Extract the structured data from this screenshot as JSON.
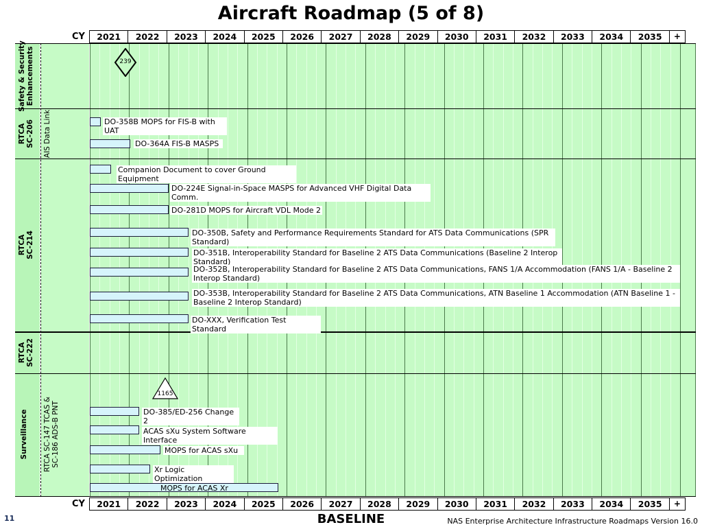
{
  "title": "Aircraft Roadmap (5 of 8)",
  "cy_label": "CY",
  "years": [
    "2021",
    "2022",
    "2023",
    "2024",
    "2025",
    "2026",
    "2027",
    "2028",
    "2029",
    "2030",
    "2031",
    "2032",
    "2033",
    "2034",
    "2035"
  ],
  "plus_label": "+",
  "sections": {
    "safety": {
      "line1": "Safety & Security",
      "line2": "Enhancements"
    },
    "sc206": {
      "line1": "RTCA",
      "line2": "SC-206",
      "sub": "AIS Data Link"
    },
    "sc214": {
      "line1": "RTCA",
      "line2": "SC-214"
    },
    "sc222": {
      "line1": "RTCA",
      "line2": "SC-222"
    },
    "surveillance": {
      "line1": "Surveillance",
      "sub1": "RTCA SC-147 TCAS &",
      "sub2": "SC-186 ADS-B PNT"
    }
  },
  "markers": {
    "diamond": "239",
    "triangle": "1165"
  },
  "activities": [
    {
      "label": "DO-358B MOPS for FIS-B with UAT"
    },
    {
      "label": "DO-364A  FIS-B MASPS"
    },
    {
      "label": "Companion Document to cover Ground Equipment"
    },
    {
      "label": " DO-224E Signal-in-Space MASPS for Advanced VHF Digital Data Comm."
    },
    {
      "label": "DO-281D MOPS for Aircraft VDL Mode 2"
    },
    {
      "label": "DO-350B, Safety and Performance Requirements Standard for ATS Data Communications (SPR Standard)"
    },
    {
      "label": "DO-351B, Interoperability Standard for Baseline 2 ATS Data Communications (Baseline 2 Interop Standard)"
    },
    {
      "label": "DO-352B, Interoperability Standard for Baseline 2 ATS Data Communications, FANS 1/A Accommodation (FANS 1/A - Baseline 2 Interop Standard)"
    },
    {
      "label": "DO-353B, Interoperability Standard for Baseline 2 ATS Data Communications, ATN Baseline 1 Accommodation (ATN Baseline 1 - Baseline 2 Interop Standard)"
    },
    {
      "label": "DO-XXX, Verification Test Standard"
    },
    {
      "label": "DO-385/ED-256 Change 2"
    },
    {
      "label": "ACAS sXu System Software Interface"
    },
    {
      "label": "MOPS for ACAS sXu"
    },
    {
      "label": "Xr Logic Optimization"
    },
    {
      "label": "MOPS for ACAS Xr"
    }
  ],
  "page_number": "11",
  "baseline_label": "BASELINE",
  "footer": "NAS Enterprise Architecture Infrastructure Roadmaps Version 16.0"
}
